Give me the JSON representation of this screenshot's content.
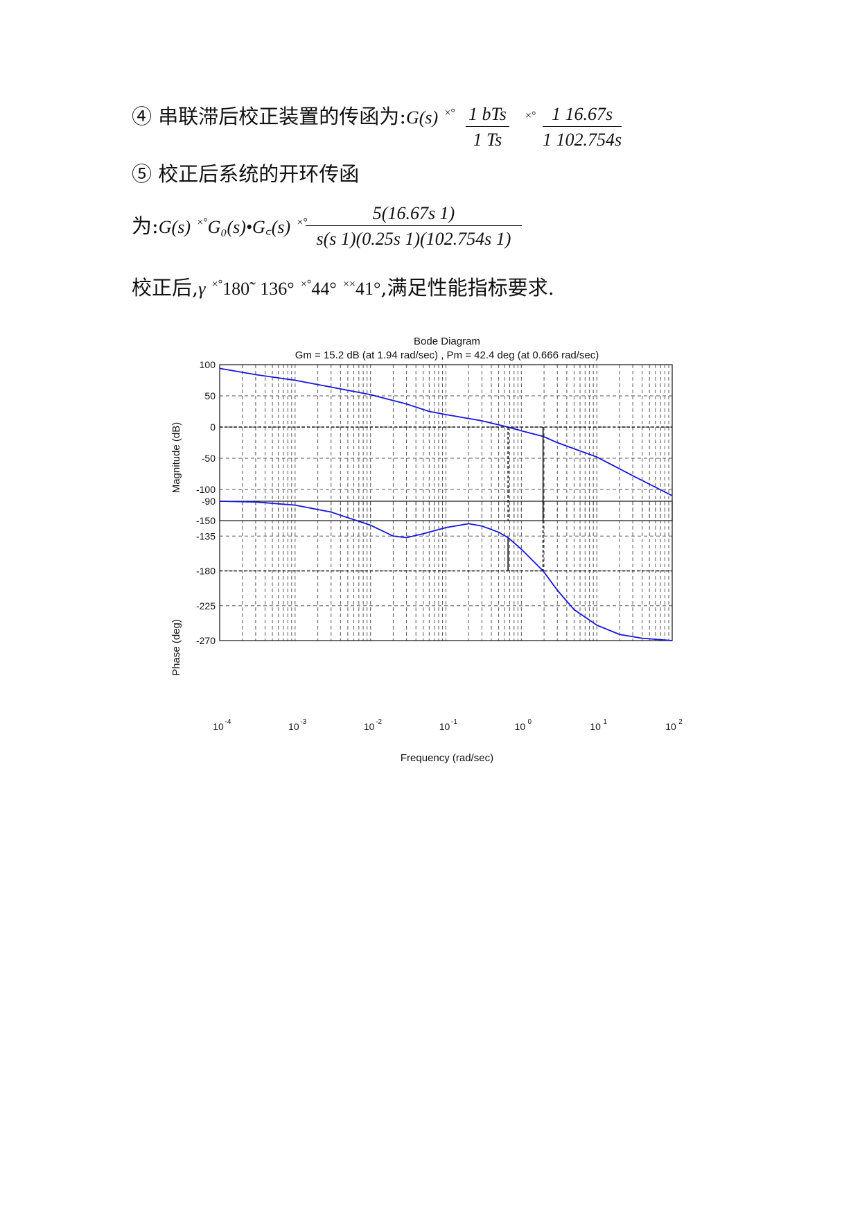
{
  "text": {
    "line4_prefix": "④ 串联滞后校正装置的传函为:",
    "line4_lhs": "G(s)",
    "eq_glyph": "×°",
    "frac1_num": "1   bTs",
    "frac1_den": "1   Ts",
    "frac2_num": "1   16.67s",
    "frac2_den": "1   102.754s",
    "line5": "⑤ 校正后系统的开环传函",
    "line6_prefix": "为:",
    "line6_lhs": "G(s)",
    "line6_mid": "G₀(s)•G꜀(s)",
    "frac3_num": "5(16.67s   1)",
    "frac3_den": "s(s   1)(0.25s   1)(102.754s   1)",
    "line7_prefix": "校正后,",
    "line7_gamma": "γ",
    "line7_v1": "180˜   136°",
    "line7_v2": "44°",
    "line7_glyph2": "××",
    "line7_v3": "41°",
    "line7_suffix": ",满足性能指标要求."
  },
  "chart_data": {
    "type": "line",
    "title": "Bode Diagram",
    "subtitle": "Gm = 15.2 dB (at 1.94 rad/sec) ,  Pm = 42.4 deg (at 0.666 rad/sec)",
    "xlabel": "Frequency  (rad/sec)",
    "x_scale": "log",
    "xlim": [
      0.0001,
      100
    ],
    "x_ticks": [
      {
        "base": "10",
        "exp": "-4"
      },
      {
        "base": "10",
        "exp": "-3"
      },
      {
        "base": "10",
        "exp": "-2"
      },
      {
        "base": "10",
        "exp": "-1"
      },
      {
        "base": "10",
        "exp": "0"
      },
      {
        "base": "10",
        "exp": "1"
      },
      {
        "base": "10",
        "exp": "2"
      }
    ],
    "grid": true,
    "gain_margin": {
      "value_db": 15.2,
      "freq": 1.94
    },
    "phase_margin": {
      "value_deg": 42.4,
      "freq": 0.666
    },
    "magnitude": {
      "ylabel": "Magnitude (dB)",
      "ylim": [
        -150,
        100
      ],
      "yticks": [
        "100",
        "50",
        "0",
        "-50",
        "-100",
        "-150"
      ],
      "x": [
        0.0001,
        0.0003,
        0.001,
        0.003,
        0.01,
        0.03,
        0.06,
        0.1,
        0.3,
        0.666,
        1,
        1.94,
        3,
        10,
        30,
        100
      ],
      "y": [
        94,
        84,
        75,
        64,
        52,
        37,
        25,
        20,
        10,
        0,
        -6,
        -15,
        -25,
        -48,
        -78,
        -110
      ]
    },
    "phase": {
      "ylabel": "Phase (deg)",
      "ylim": [
        -270,
        -90
      ],
      "yticks": [
        "-90",
        "-135",
        "-180",
        "-225",
        "-270"
      ],
      "x": [
        0.0001,
        0.0003,
        0.001,
        0.003,
        0.01,
        0.02,
        0.03,
        0.05,
        0.1,
        0.2,
        0.3,
        0.5,
        0.666,
        1,
        1.94,
        3,
        5,
        10,
        20,
        40,
        100
      ],
      "y": [
        -90,
        -91,
        -95,
        -104,
        -121,
        -135,
        -137,
        -132,
        -124,
        -119,
        -122,
        -130,
        -137,
        -152,
        -180,
        -205,
        -230,
        -250,
        -262,
        -267,
        -270
      ]
    }
  }
}
